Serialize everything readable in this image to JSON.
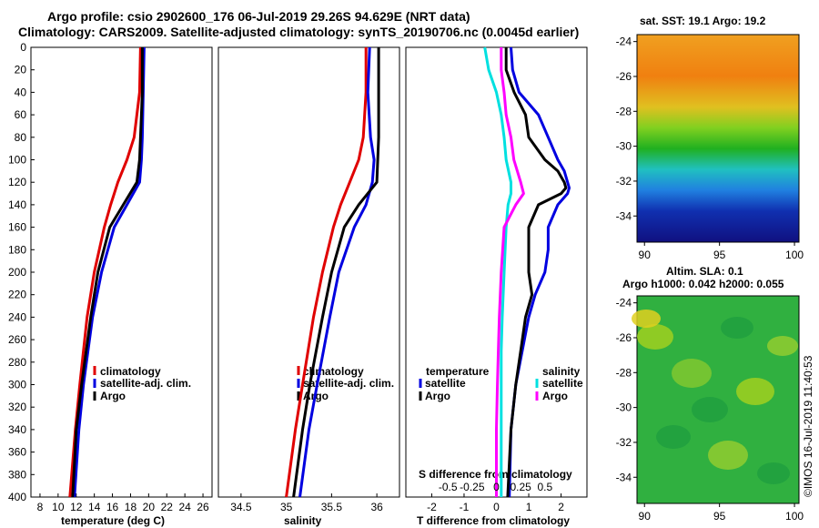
{
  "title_line1": "Argo profile: csio 2902600_176 06-Jul-2019 29.26S 94.629E (NRT data)",
  "title_line2": "Climatology: CARS2009. Satellite-adjusted climatology: synTS_20190706.nc (0.0045d earlier)",
  "colors": {
    "climatology": "#e00000",
    "satellite": "#0000e0",
    "argo": "#000000",
    "salinity_argo": "#ff00ff",
    "salinity_sat": "#00e0e0"
  },
  "chart_data": [
    {
      "type": "line",
      "name": "temperature",
      "xlabel": "temperature (deg C)",
      "ylabel": "",
      "xlim": [
        7,
        27
      ],
      "ylim": [
        400,
        0
      ],
      "xticks": [
        "8",
        "10",
        "12",
        "14",
        "16",
        "18",
        "20",
        "22",
        "24",
        "26"
      ],
      "yticks": [
        "0",
        "20",
        "40",
        "60",
        "80",
        "100",
        "120",
        "140",
        "160",
        "180",
        "200",
        "220",
        "240",
        "260",
        "280",
        "300",
        "320",
        "340",
        "360",
        "380",
        "400"
      ],
      "legend": [
        "climatology",
        "satellite-adj. clim.",
        "Argo"
      ],
      "series": [
        {
          "name": "climatology",
          "depth": [
            0,
            40,
            80,
            100,
            120,
            140,
            160,
            200,
            240,
            300,
            340,
            400
          ],
          "values": [
            19.1,
            19.0,
            18.4,
            17.6,
            16.6,
            15.8,
            15.1,
            14.0,
            13.2,
            12.4,
            11.9,
            11.3
          ]
        },
        {
          "name": "satellite-adj. clim.",
          "depth": [
            0,
            40,
            80,
            100,
            120,
            140,
            160,
            200,
            240,
            300,
            340,
            400
          ],
          "values": [
            19.5,
            19.4,
            19.3,
            19.2,
            19.0,
            17.6,
            16.2,
            14.8,
            13.8,
            12.8,
            12.3,
            11.8
          ]
        },
        {
          "name": "Argo",
          "depth": [
            0,
            40,
            80,
            100,
            120,
            140,
            160,
            200,
            240,
            300,
            340,
            400
          ],
          "values": [
            19.3,
            19.3,
            19.1,
            19.0,
            18.7,
            17.2,
            15.7,
            14.4,
            13.6,
            12.6,
            12.0,
            11.6
          ]
        }
      ]
    },
    {
      "type": "line",
      "name": "salinity",
      "xlabel": "salinity",
      "xlim": [
        34.25,
        36.25
      ],
      "ylim": [
        400,
        0
      ],
      "xticks": [
        "34.5",
        "35",
        "35.5",
        "36"
      ],
      "legend": [
        "climatology",
        "satellite-adj. clim.",
        "Argo"
      ],
      "series": [
        {
          "name": "climatology",
          "depth": [
            0,
            40,
            80,
            100,
            120,
            140,
            160,
            200,
            240,
            300,
            340,
            400
          ],
          "values": [
            35.88,
            35.88,
            35.85,
            35.8,
            35.7,
            35.6,
            35.52,
            35.4,
            35.3,
            35.18,
            35.1,
            35.0
          ]
        },
        {
          "name": "satellite-adj. clim.",
          "depth": [
            0,
            40,
            80,
            100,
            120,
            140,
            160,
            200,
            240,
            300,
            340,
            400
          ],
          "values": [
            35.92,
            35.9,
            35.93,
            35.97,
            35.95,
            35.88,
            35.75,
            35.58,
            35.48,
            35.34,
            35.25,
            35.15
          ]
        },
        {
          "name": "Argo",
          "depth": [
            0,
            40,
            80,
            100,
            120,
            140,
            160,
            200,
            240,
            300,
            340,
            400
          ],
          "values": [
            36.02,
            36.02,
            36.02,
            36.01,
            36.0,
            35.8,
            35.64,
            35.5,
            35.4,
            35.26,
            35.18,
            35.08
          ]
        }
      ]
    },
    {
      "type": "line",
      "name": "differences",
      "xlabel": "T difference from climatology",
      "top_label": "S difference from climatology",
      "xlim": [
        -2.8,
        2.8
      ],
      "ylim": [
        400,
        0
      ],
      "xticks": [
        "-2",
        "-1",
        "0",
        "1",
        "2"
      ],
      "top_ticks": [
        "-0.5",
        "-0.25",
        "0",
        "0.25",
        "0.5"
      ],
      "legend_temperature": {
        "title": "temperature",
        "items": [
          "satellite",
          "Argo"
        ]
      },
      "legend_salinity": {
        "title": "salinity",
        "items": [
          "satellite",
          "Argo"
        ]
      },
      "series": [
        {
          "name": "temperature satellite",
          "depth": [
            0,
            20,
            40,
            60,
            80,
            100,
            110,
            120,
            125,
            130,
            140,
            160,
            180,
            200,
            220,
            240,
            270,
            300,
            340,
            400
          ],
          "values": [
            0.45,
            0.5,
            0.7,
            1.3,
            1.6,
            1.9,
            2.1,
            2.2,
            2.25,
            2.2,
            1.9,
            1.6,
            1.6,
            1.5,
            1.2,
            1.0,
            0.8,
            0.6,
            0.45,
            0.4
          ]
        },
        {
          "name": "temperature Argo",
          "depth": [
            0,
            20,
            40,
            60,
            80,
            100,
            110,
            120,
            125,
            130,
            140,
            160,
            180,
            200,
            220,
            240,
            270,
            300,
            340,
            400
          ],
          "values": [
            0.3,
            0.3,
            0.55,
            0.9,
            1.0,
            1.5,
            1.9,
            2.1,
            2.15,
            2.0,
            1.3,
            1.0,
            1.0,
            1.0,
            1.1,
            0.9,
            0.75,
            0.6,
            0.45,
            0.35
          ]
        },
        {
          "name": "salinity satellite",
          "depth": [
            0,
            20,
            40,
            60,
            80,
            100,
            120,
            130,
            140,
            160,
            200,
            240,
            270,
            300,
            340,
            400
          ],
          "values": [
            -0.12,
            -0.08,
            0.0,
            0.05,
            0.08,
            0.1,
            0.15,
            0.15,
            0.12,
            0.1,
            0.08,
            0.06,
            0.05,
            0.05,
            0.05,
            0.05
          ]
        },
        {
          "name": "salinity Argo",
          "depth": [
            0,
            20,
            40,
            60,
            80,
            100,
            120,
            130,
            140,
            160,
            200,
            240,
            270,
            300,
            340,
            400
          ],
          "values": [
            0.05,
            0.05,
            0.08,
            0.1,
            0.15,
            0.18,
            0.25,
            0.28,
            0.2,
            0.08,
            0.05,
            0.03,
            0.02,
            0.01,
            0.0,
            0.0
          ]
        }
      ]
    },
    {
      "type": "heatmap",
      "name": "sst-map",
      "title": "sat. SST: 19.1 Argo: 19.2",
      "xlim": [
        89.5,
        100.3
      ],
      "ylim": [
        -35.5,
        -23.6
      ],
      "xticks": [
        "90",
        "95",
        "100"
      ],
      "yticks": [
        "-24",
        "-26",
        "-28",
        "-30",
        "-32",
        "-34"
      ]
    },
    {
      "type": "heatmap",
      "name": "sla-map",
      "title": "Altim. SLA: 0.1",
      "subtitle": "Argo h1000: 0.042 h2000: 0.055",
      "xlim": [
        89.5,
        100.3
      ],
      "ylim": [
        -35.5,
        -23.6
      ],
      "xticks": [
        "90",
        "95",
        "100"
      ],
      "yticks": [
        "-24",
        "-26",
        "-28",
        "-30",
        "-32",
        "-34"
      ]
    }
  ],
  "credit": "©IMOS 16-Jul-2019 11:40:53"
}
